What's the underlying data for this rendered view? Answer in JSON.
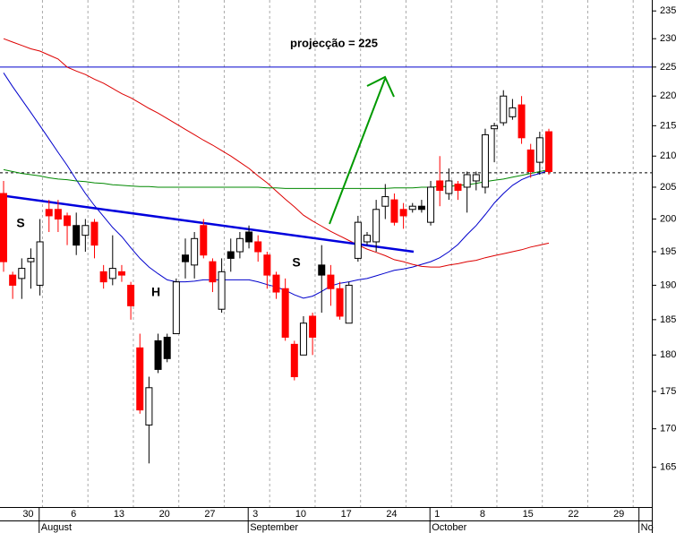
{
  "chart_data": {
    "type": "candlestick",
    "annotation": "projecção = 225",
    "pattern_labels": [
      "S",
      "H",
      "S"
    ],
    "categories": [
      null,
      null,
      null,
      "30",
      null,
      null,
      null,
      null,
      "6",
      null,
      null,
      null,
      null,
      "13",
      null,
      null,
      null,
      null,
      "20",
      null,
      null,
      null,
      null,
      "27",
      null,
      null,
      null,
      null,
      "3",
      null,
      null,
      null,
      null,
      "10",
      null,
      null,
      null,
      null,
      "17",
      null,
      null,
      null,
      null,
      "24",
      null,
      null,
      null,
      null,
      "1",
      null,
      null,
      null,
      null,
      "8",
      null,
      null,
      null,
      null,
      "15",
      null,
      null,
      null,
      null,
      "22",
      null,
      null,
      null,
      null,
      "29",
      null,
      null,
      null
    ],
    "months": [
      null,
      null,
      null,
      null,
      null,
      "August",
      null,
      null,
      null,
      null,
      null,
      null,
      null,
      null,
      null,
      null,
      null,
      null,
      null,
      null,
      null,
      null,
      null,
      null,
      null,
      null,
      null,
      null,
      "September",
      null,
      null,
      null,
      null,
      null,
      null,
      null,
      null,
      null,
      null,
      null,
      null,
      null,
      null,
      null,
      null,
      null,
      null,
      null,
      "October",
      null,
      null,
      null,
      null,
      null,
      null,
      null,
      null,
      null,
      null,
      null,
      null,
      null,
      null,
      null,
      null,
      null,
      null,
      null,
      null,
      null,
      null,
      "No"
    ],
    "open": [
      204,
      191.5,
      191,
      193.5,
      190,
      201.5,
      201.5,
      200.5,
      199,
      197.5,
      199.5,
      192,
      191,
      192,
      190,
      181,
      170.5,
      182,
      182.5,
      183,
      194.5,
      193,
      199,
      193.5,
      186.5,
      195,
      195,
      198,
      196.5,
      194.5,
      191.5,
      189.5,
      181.5,
      180,
      185.5,
      193,
      191.5,
      189.5,
      184.5,
      194,
      196.5,
      196.5,
      202,
      203,
      201.5,
      201.5,
      202,
      199.5,
      206,
      204,
      205.5,
      205,
      206,
      205,
      214.5,
      215.5,
      216.5,
      218.5,
      211,
      209,
      214,
      null,
      null,
      null,
      null,
      null,
      null,
      null,
      null,
      null,
      null,
      null
    ],
    "high": [
      206,
      192,
      194,
      195.5,
      200,
      203,
      203,
      201,
      201,
      200,
      200,
      193,
      197.5,
      193,
      190.5,
      183,
      177,
      183,
      183,
      191,
      197,
      198,
      200,
      194,
      194,
      197,
      198,
      199,
      197.5,
      195,
      192,
      191,
      182,
      185.5,
      186,
      196,
      193,
      190.5,
      190.5,
      200.5,
      198,
      203,
      205.5,
      204,
      202.5,
      202.5,
      203,
      206,
      210,
      208,
      206,
      207.5,
      207.5,
      214.5,
      215.5,
      221,
      219.5,
      220,
      212,
      214,
      214.5,
      null,
      null,
      null,
      null,
      null,
      null,
      null,
      null,
      null,
      null,
      null
    ],
    "low": [
      192,
      188,
      188,
      189.5,
      188.5,
      198,
      198,
      196,
      194.5,
      195,
      194,
      189.5,
      190,
      190.5,
      185,
      172,
      165.5,
      177.5,
      179,
      183,
      191,
      191,
      194,
      189,
      186,
      192,
      194,
      195.5,
      193.5,
      189.5,
      188,
      182,
      176.5,
      180,
      180,
      186,
      187,
      185,
      184.5,
      193.5,
      196,
      195,
      200,
      199,
      198.5,
      201,
      201,
      199,
      202,
      203,
      203,
      201,
      204.5,
      204,
      209,
      215,
      216,
      212,
      206.5,
      207,
      207,
      null,
      null,
      null,
      null,
      null,
      null,
      null,
      null,
      null,
      null,
      null
    ],
    "close": [
      193.5,
      190,
      192.5,
      194,
      196.5,
      200.5,
      200,
      199,
      196,
      199,
      196,
      190.5,
      192.5,
      191.5,
      187,
      172.5,
      175.5,
      178,
      179.5,
      190.5,
      193.5,
      197,
      194.5,
      190.5,
      192,
      194,
      197,
      196.5,
      195,
      191.5,
      189,
      182.5,
      177,
      184.5,
      182.5,
      191.5,
      189.5,
      185.5,
      190,
      199.5,
      197.5,
      201.5,
      203.5,
      199.5,
      200.5,
      202,
      201.5,
      205,
      204.5,
      206,
      204.5,
      207,
      207,
      213.5,
      215,
      220,
      218,
      213,
      207.5,
      213,
      207.5,
      null,
      null,
      null,
      null,
      null,
      null,
      null,
      null,
      null,
      null,
      null
    ],
    "candle_colors": [
      "#ff0000",
      "#ff0000",
      "#ffffff",
      "#ffffff",
      "#ffffff",
      "#ff0000",
      "#ff0000",
      "#ff0000",
      "#000000",
      "#ffffff",
      "#ff0000",
      "#ff0000",
      "#ffffff",
      "#ff0000",
      "#ff0000",
      "#ff0000",
      "#ffffff",
      "#000000",
      "#000000",
      "#ffffff",
      "#000000",
      "#ffffff",
      "#ff0000",
      "#ff0000",
      "#ffffff",
      "#000000",
      "#ffffff",
      "#000000",
      "#ff0000",
      "#ff0000",
      "#ff0000",
      "#ff0000",
      "#ff0000",
      "#ffffff",
      "#ff0000",
      "#000000",
      "#ff0000",
      "#ff0000",
      "#ffffff",
      "#ffffff",
      "#ffffff",
      "#ffffff",
      "#ffffff",
      "#ff0000",
      "#ff0000",
      "#ffffff",
      "#000000",
      "#ffffff",
      "#ff0000",
      "#ffffff",
      "#ff0000",
      "#ffffff",
      "#ffffff",
      "#ffffff",
      "#ffffff",
      "#ffffff",
      "#ffffff",
      "#ff0000",
      "#ff0000",
      "#ffffff",
      "#ff0000",
      null,
      null,
      null,
      null,
      null,
      null,
      null,
      null,
      null,
      null,
      null
    ],
    "moving_averages": [
      {
        "color": "#0000cc",
        "values": [
          224,
          221.6,
          219.4,
          217.2,
          215,
          212.8,
          210.6,
          208.5,
          206.2,
          204,
          202.1,
          200.4,
          198.7,
          197.3,
          195.6,
          194,
          192.7,
          191.7,
          190.8,
          190.5,
          190.5,
          190.6,
          190.8,
          190.8,
          190.8,
          190.8,
          190.8,
          190.8,
          190.5,
          190.1,
          189.75,
          189.25,
          188.6,
          188.1,
          188.4,
          189.1,
          189.9,
          190.3,
          190.5,
          190.8,
          191,
          191.4,
          191.8,
          192.2,
          192.4,
          192.7,
          193.1,
          193.5,
          194.1,
          195,
          196.1,
          197.6,
          199,
          200.7,
          202.5,
          204,
          205.3,
          206.2,
          206.8,
          207.2,
          207.7,
          null,
          null,
          null,
          null,
          null,
          null,
          null,
          null,
          null,
          null,
          null
        ]
      },
      {
        "color": "#dd0000",
        "values": [
          230,
          229.4,
          228.8,
          228.2,
          227.8,
          227.1,
          226.4,
          225,
          224.3,
          223.7,
          222.9,
          222.2,
          221.3,
          220.4,
          219.7,
          218.8,
          217.9,
          217.1,
          216.2,
          215.3,
          214.4,
          213.5,
          212.6,
          211.8,
          210.9,
          210,
          209,
          208,
          206.8,
          205.7,
          204.4,
          203.1,
          201.9,
          200.6,
          199.7,
          198.9,
          198.1,
          197.4,
          196.7,
          196,
          195.4,
          194.9,
          194.4,
          193.8,
          193.5,
          193.1,
          192.8,
          192.7,
          192.7,
          193,
          193.2,
          193.5,
          193.7,
          194.1,
          194.4,
          194.7,
          195,
          195.3,
          195.7,
          196,
          196.3,
          null,
          null,
          null,
          null,
          null,
          null,
          null,
          null,
          null,
          null,
          null
        ]
      },
      {
        "color": "#008800",
        "values": [
          207.8,
          207.5,
          207.2,
          207,
          206.8,
          206.5,
          206.3,
          206.2,
          206,
          205.9,
          205.7,
          205.6,
          205.4,
          205.3,
          205.2,
          205.1,
          205.1,
          205,
          205,
          205,
          205,
          205,
          205,
          205,
          205,
          205,
          205,
          205,
          205,
          204.9,
          204.9,
          204.8,
          204.8,
          204.8,
          204.8,
          204.8,
          204.8,
          204.8,
          204.8,
          204.8,
          204.8,
          204.8,
          204.8,
          204.9,
          204.9,
          204.9,
          205,
          205,
          205.1,
          205.1,
          205.3,
          205.4,
          205.6,
          205.9,
          206.1,
          206.3,
          206.6,
          206.9,
          207.2,
          207.5,
          207.8,
          null,
          null,
          null,
          null,
          null,
          null,
          null,
          null,
          null,
          null,
          null
        ]
      }
    ],
    "projection_level": 225,
    "projection_color": "#0000cc",
    "support_level": 207.3,
    "ylim": [
      160,
      237
    ],
    "log_scale": true,
    "yticks": [
      165,
      170,
      175,
      180,
      185,
      190,
      195,
      200,
      205,
      210,
      215,
      220,
      225,
      230,
      235
    ],
    "grid": true
  }
}
